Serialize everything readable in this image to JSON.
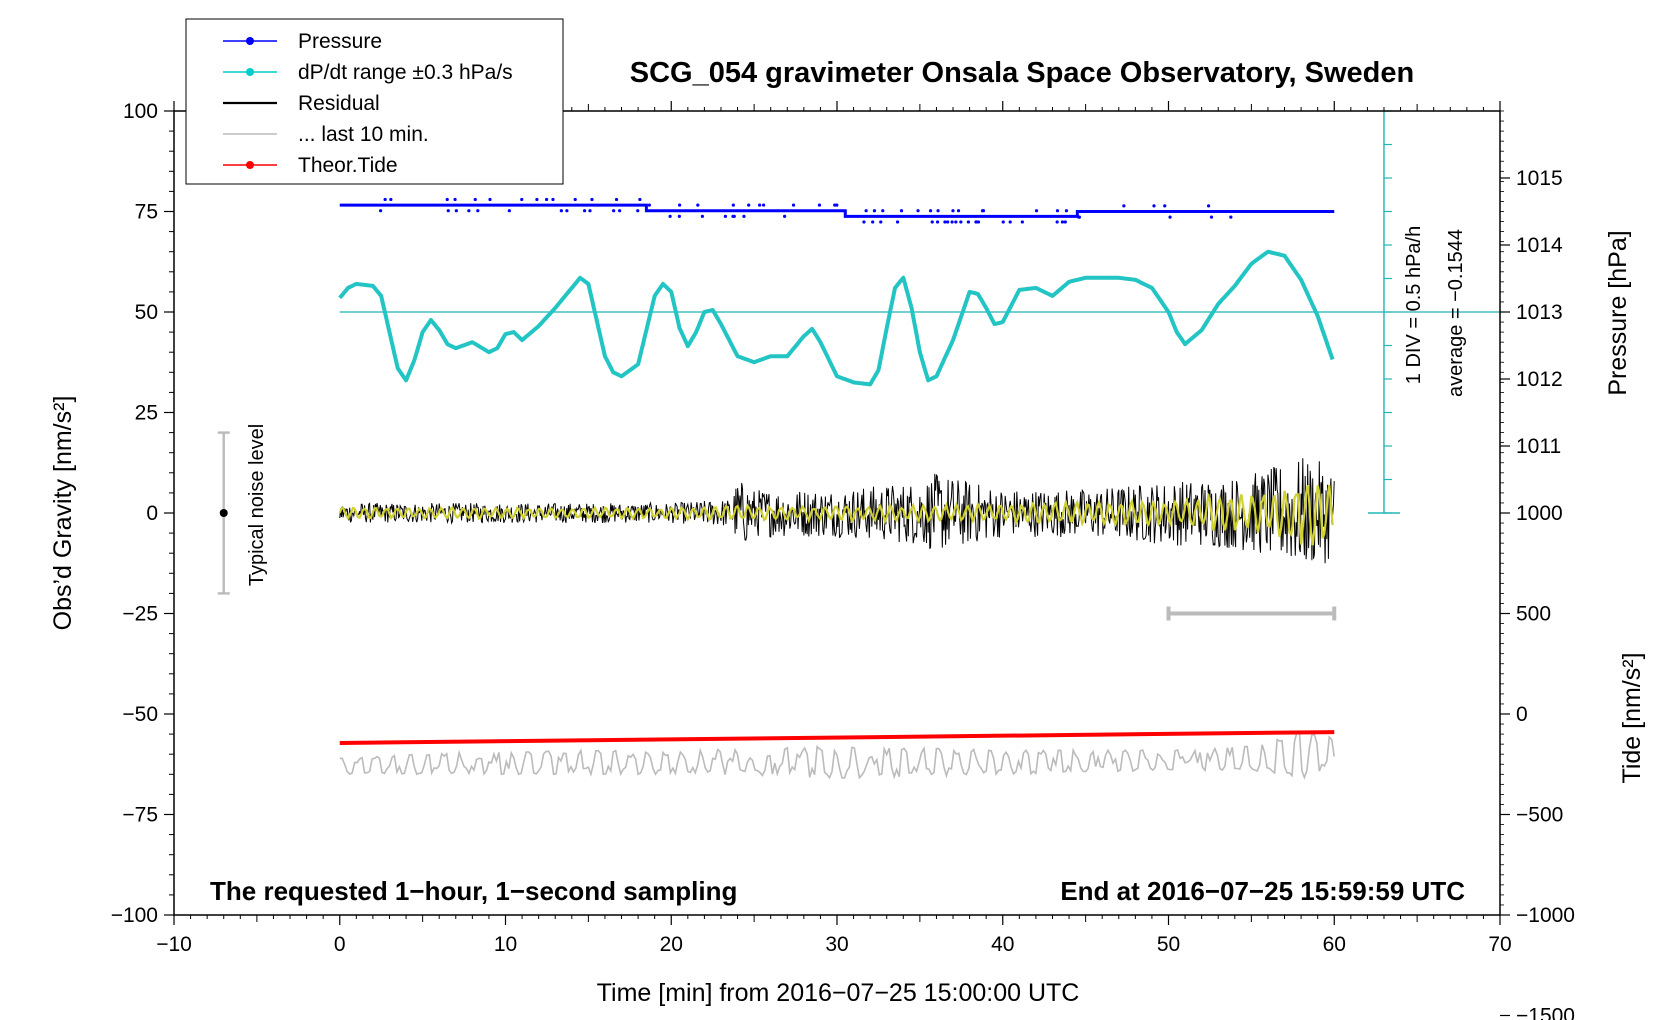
{
  "chart_data": {
    "type": "line",
    "title": "SCG_054 gravimeter Onsala Space Observatory, Sweden",
    "xlabel": "Time [min] from 2016−07−25 15:00:00 UTC",
    "ylabel_main": "Obs’d Gravity [nm/s²]",
    "ylabel_pressure": "Pressure [hPa]",
    "ylabel_tide": "Tide [nm/s²]",
    "xlim": [
      -10,
      70
    ],
    "ylim": [
      -100,
      100
    ],
    "x_ticks": [
      -10,
      0,
      10,
      20,
      30,
      40,
      50,
      60,
      70
    ],
    "x_tick_labels": [
      "−10",
      "0",
      "10",
      "20",
      "30",
      "40",
      "50",
      "60",
      "70"
    ],
    "y_ticks": [
      100,
      75,
      50,
      25,
      0,
      -25,
      -50,
      -75,
      -100
    ],
    "y_tick_labels": [
      "100",
      "75",
      "50",
      "25",
      "0",
      "−25",
      "−50",
      "−75",
      "−100"
    ],
    "pressure_ticks": [
      1015,
      1014,
      1013,
      1012,
      1011
    ],
    "pressure_tick_labels": [
      "1015",
      "1014",
      "1013",
      "1012",
      "1011"
    ],
    "pressure_scale_ref": {
      "hpa_at_50": 1013,
      "hpa_per_unit": 0.06
    },
    "tide_ticks": [
      1000,
      500,
      0,
      -500,
      -1000,
      -1500
    ],
    "tide_tick_labels": [
      "1000",
      "500",
      "0",
      "−500",
      "−1000",
      "−1500"
    ],
    "tide_scale_ref": {
      "nms2_at_0": 1000,
      "nms2_per_unit": 20
    },
    "legend": [
      {
        "label": "Pressure",
        "color": "#0000ff",
        "marker": true
      },
      {
        "label": "dP/dt range ±0.3 hPa/s",
        "color": "#00cccc",
        "marker": true
      },
      {
        "label": "Residual",
        "color": "#000000",
        "marker": false
      },
      {
        "label": "... last 10 min.",
        "color": "#bbbbbb",
        "marker": false
      },
      {
        "label": "Theor.Tide",
        "color": "#ff0000",
        "marker": true
      }
    ],
    "legend_position": "top-left",
    "noise_label": "Typical noise level",
    "noise_bar": {
      "x": -7,
      "center": 0,
      "half_range": 20
    },
    "dpdt_label_1": "1 DIV = 0.5 hPa/h",
    "dpdt_label_2": "average = −0.1544",
    "dpdt_axis": {
      "x": 63,
      "from": 0,
      "to": 100,
      "baseline": 50
    },
    "last10_bar": {
      "x_start": 50,
      "x_end": 60,
      "y": -25
    },
    "note_left": "The requested 1−hour, 1−second sampling",
    "note_right": "End at 2016−07−25 15:59:59 UTC",
    "series": [
      {
        "name": "Pressure",
        "color": "#0000ff",
        "points": [
          [
            0,
            76.6
          ],
          [
            18.5,
            76.6
          ],
          [
            18.5,
            75.2
          ],
          [
            30.5,
            75.2
          ],
          [
            30.5,
            73.8
          ],
          [
            44.5,
            73.8
          ],
          [
            44.5,
            75.0
          ],
          [
            60,
            75.0
          ]
        ]
      },
      {
        "name": "dP/dt range ±0.3 hPa/s",
        "color": "#22c4c4",
        "x": [
          0,
          0.5,
          1,
          2,
          2.5,
          3,
          3.5,
          4,
          4.5,
          5,
          5.5,
          6,
          6.5,
          7,
          8,
          9,
          9.5,
          10,
          10.5,
          11,
          12,
          13,
          14,
          14.5,
          15,
          15.5,
          16,
          16.5,
          17,
          18,
          19,
          19.5,
          20,
          20.5,
          21,
          21.5,
          22,
          22.5,
          23,
          24,
          25,
          26,
          27,
          28,
          28.5,
          29,
          30,
          31,
          32,
          32.5,
          33,
          33.5,
          34,
          34.5,
          35,
          35.5,
          36,
          37,
          38,
          38.5,
          39,
          39.5,
          40,
          41,
          42,
          43,
          44,
          45,
          46,
          47,
          48,
          49,
          50,
          50.5,
          51,
          52,
          53,
          54,
          55,
          56,
          57,
          58,
          59,
          60
        ],
        "values": [
          53.5,
          56,
          57,
          56.5,
          54,
          45,
          36,
          33,
          38,
          45,
          48,
          45.5,
          42,
          41,
          42.5,
          40,
          41,
          44.5,
          45,
          43,
          46.5,
          51,
          56,
          58.5,
          57,
          48,
          39,
          35,
          34,
          37,
          54,
          57,
          55,
          46,
          41.5,
          45,
          50,
          50.5,
          47,
          39,
          37.5,
          39,
          39,
          44,
          45.8,
          42.5,
          34,
          32.5,
          32,
          35.5,
          46,
          56,
          58.5,
          51,
          40,
          33,
          34,
          43,
          55,
          54.5,
          51,
          47,
          47.5,
          55.5,
          56,
          54,
          57.5,
          58.5,
          58.5,
          58.5,
          58,
          56,
          50,
          45,
          42,
          45.5,
          52,
          56.5,
          62,
          65,
          64,
          58,
          49,
          37
        ]
      },
      {
        "name": "Residual",
        "color": "#000000",
        "x": [
          0,
          5,
          10,
          15,
          20,
          23.5,
          24,
          24.5,
          25,
          30,
          35,
          36,
          40,
          45,
          50,
          52,
          54,
          56,
          57,
          58,
          59,
          60
        ],
        "amplitude": [
          2.5,
          2.5,
          2.5,
          2.5,
          2.5,
          3.5,
          8,
          8,
          6,
          6,
          8,
          10,
          6,
          6,
          8,
          8.5,
          9,
          11,
          12.5,
          14,
          13,
          12
        ]
      },
      {
        "name": "... last 10 min.",
        "color": "#bbbbbb",
        "x": [
          0,
          10,
          20,
          30,
          40,
          50,
          55,
          58,
          60
        ],
        "center": [
          -63,
          -62,
          -62,
          -62,
          -62,
          -61.5,
          -61,
          -60,
          -60
        ],
        "amplitude": [
          2,
          3,
          3,
          4,
          3,
          2.5,
          3,
          6,
          4
        ]
      },
      {
        "name": "Theor.Tide",
        "color": "#ff0000",
        "points": [
          [
            0,
            -57.2
          ],
          [
            60,
            -54.5
          ]
        ]
      },
      {
        "name": "filtered",
        "color": "#d0d030",
        "x": [
          0,
          20,
          24,
          30,
          40,
          50,
          55,
          57,
          58,
          59,
          60
        ],
        "amplitude": [
          1.5,
          1.5,
          2,
          2,
          2.5,
          3.5,
          6,
          7.5,
          8.5,
          8.5,
          8
        ]
      }
    ]
  }
}
